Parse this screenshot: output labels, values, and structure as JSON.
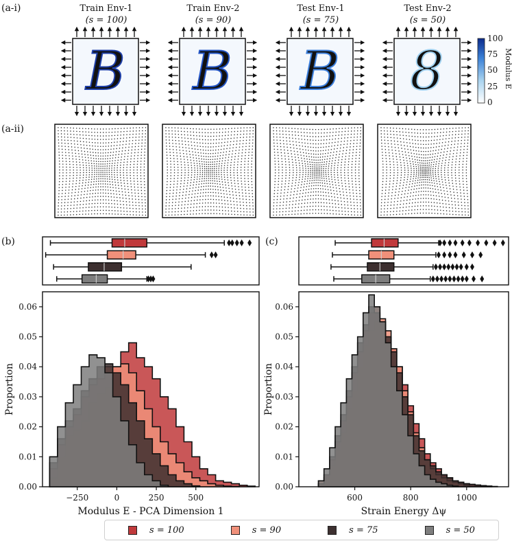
{
  "labels": {
    "ai": "(a-i)",
    "aii": "(a-ii)",
    "b": "(b)",
    "c": "(c)"
  },
  "environments": [
    {
      "name": "Train Env-1",
      "s_label": "(s = 100)",
      "color": "#1e3fa8",
      "glyph": "B"
    },
    {
      "name": "Train Env-2",
      "s_label": "(s = 90)",
      "color": "#2456c6",
      "glyph": "B"
    },
    {
      "name": "Test Env-1",
      "s_label": "(s = 75)",
      "color": "#3c7fdc",
      "glyph": "B"
    },
    {
      "name": "Test Env-2",
      "s_label": "(s = 50)",
      "color": "#9fd0ef",
      "glyph": "8"
    }
  ],
  "colorbar": {
    "label": "Modulus E",
    "ticks": [
      "100",
      "75",
      "50",
      "25",
      "0"
    ]
  },
  "legend": [
    {
      "label": "s = 100",
      "color": "#c0393b"
    },
    {
      "label": "s = 90",
      "color": "#f0907a"
    },
    {
      "label": "s = 75",
      "color": "#3d3030"
    },
    {
      "label": "s = 50",
      "color": "#7e7e7e"
    }
  ],
  "chart_data": [
    {
      "type": "histogram",
      "panel": "(b)",
      "xlabel": "Modulus E - PCA Dimension 1",
      "ylabel": "Proportion",
      "xlim": [
        -470,
        900
      ],
      "ylim": [
        0,
        0.065
      ],
      "xticks": [
        -250,
        0,
        250,
        500
      ],
      "yticks": [
        0.0,
        0.01,
        0.02,
        0.03,
        0.04,
        0.05,
        0.06
      ],
      "ytick_labels": [
        "0.00",
        "0.01",
        "0.02",
        "0.03",
        "0.04",
        "0.05",
        "0.06"
      ],
      "xtick_labels": [
        "−250",
        "0",
        "250",
        "500"
      ],
      "series": [
        {
          "name": "s = 100",
          "color": "#c0393b",
          "x": [
            -400,
            -350,
            -300,
            -250,
            -200,
            -150,
            -100,
            -50,
            0,
            50,
            100,
            150,
            200,
            250,
            300,
            350,
            400,
            450,
            500,
            550,
            600,
            650,
            700,
            750,
            800,
            850
          ],
          "values": [
            0.003,
            0.01,
            0.017,
            0.019,
            0.022,
            0.028,
            0.031,
            0.033,
            0.04,
            0.045,
            0.048,
            0.043,
            0.04,
            0.036,
            0.03,
            0.026,
            0.02,
            0.015,
            0.01,
            0.006,
            0.004,
            0.002,
            0.0015,
            0.001,
            0.0005,
            0.0002
          ]
        },
        {
          "name": "s = 90",
          "color": "#f0907a",
          "x": [
            -400,
            -350,
            -300,
            -250,
            -200,
            -150,
            -100,
            -50,
            0,
            50,
            100,
            150,
            200,
            250,
            300,
            350,
            400,
            450,
            500,
            550,
            600,
            650,
            700,
            750
          ],
          "values": [
            0.006,
            0.014,
            0.02,
            0.024,
            0.03,
            0.034,
            0.036,
            0.04,
            0.04,
            0.041,
            0.038,
            0.032,
            0.026,
            0.02,
            0.015,
            0.011,
            0.008,
            0.005,
            0.003,
            0.002,
            0.001,
            0.0005,
            0.0002,
            0.0001
          ]
        },
        {
          "name": "s = 75",
          "color": "#3d3030",
          "x": [
            -400,
            -350,
            -300,
            -250,
            -200,
            -150,
            -100,
            -50,
            0,
            50,
            100,
            150,
            200,
            250,
            300,
            350,
            400,
            450,
            500
          ],
          "values": [
            0.008,
            0.016,
            0.022,
            0.026,
            0.032,
            0.036,
            0.04,
            0.041,
            0.038,
            0.034,
            0.028,
            0.022,
            0.016,
            0.011,
            0.007,
            0.004,
            0.002,
            0.001,
            0.0003
          ]
        },
        {
          "name": "s = 50",
          "color": "#7e7e7e",
          "x": [
            -400,
            -350,
            -300,
            -250,
            -200,
            -150,
            -100,
            -50,
            0,
            50,
            100,
            150,
            200,
            250,
            300
          ],
          "values": [
            0.01,
            0.02,
            0.028,
            0.034,
            0.04,
            0.044,
            0.043,
            0.038,
            0.03,
            0.022,
            0.014,
            0.008,
            0.004,
            0.002,
            0.0005
          ]
        }
      ],
      "boxplots": [
        {
          "name": "s = 100",
          "whisker_low": -420,
          "q1": -30,
          "median": 50,
          "q3": 190,
          "whisker_high": 680,
          "outliers": [
            710,
            730,
            760,
            790,
            840
          ]
        },
        {
          "name": "s = 90",
          "whisker_low": -450,
          "q1": -60,
          "median": 40,
          "q3": 120,
          "whisker_high": 560,
          "outliers": [
            600,
            625
          ]
        },
        {
          "name": "s = 75",
          "whisker_low": -400,
          "q1": -180,
          "median": -80,
          "q3": 30,
          "whisker_high": 470,
          "outliers": []
        },
        {
          "name": "s = 50",
          "whisker_low": -380,
          "q1": -220,
          "median": -130,
          "q3": -60,
          "whisker_high": 190,
          "outliers": [
            200,
            215,
            230
          ]
        }
      ]
    },
    {
      "type": "histogram",
      "panel": "(c)",
      "xlabel": "Strain Energy Δψ",
      "ylabel": "Proportion",
      "xlim": [
        400,
        1150
      ],
      "ylim": [
        0,
        0.065
      ],
      "xticks": [
        600,
        800,
        1000
      ],
      "xtick_labels": [
        "600",
        "800",
        "1000"
      ],
      "yticks": [
        0.0,
        0.01,
        0.02,
        0.03,
        0.04,
        0.05,
        0.06
      ],
      "ytick_labels": [
        "0.00",
        "0.01",
        "0.02",
        "0.03",
        "0.04",
        "0.05",
        "0.06"
      ],
      "series": [
        {
          "name": "s = 100",
          "color": "#c0393b",
          "x": [
            480,
            500,
            520,
            540,
            560,
            580,
            600,
            620,
            640,
            660,
            680,
            700,
            720,
            740,
            760,
            780,
            800,
            820,
            840,
            860,
            880,
            900,
            920,
            940,
            960,
            980,
            1000,
            1020,
            1040,
            1060,
            1080
          ],
          "values": [
            0.001,
            0.003,
            0.007,
            0.012,
            0.018,
            0.026,
            0.032,
            0.04,
            0.047,
            0.052,
            0.055,
            0.054,
            0.05,
            0.046,
            0.04,
            0.034,
            0.027,
            0.021,
            0.016,
            0.011,
            0.008,
            0.006,
            0.004,
            0.003,
            0.002,
            0.0015,
            0.001,
            0.0008,
            0.0005,
            0.0003,
            0.0002
          ]
        },
        {
          "name": "s = 90",
          "color": "#f0907a",
          "x": [
            480,
            500,
            520,
            540,
            560,
            580,
            600,
            620,
            640,
            660,
            680,
            700,
            720,
            740,
            760,
            780,
            800,
            820,
            840,
            860,
            880,
            900,
            920,
            940,
            960,
            980,
            1000
          ],
          "values": [
            0.002,
            0.004,
            0.009,
            0.015,
            0.022,
            0.03,
            0.038,
            0.045,
            0.052,
            0.058,
            0.06,
            0.056,
            0.052,
            0.046,
            0.04,
            0.032,
            0.025,
            0.018,
            0.013,
            0.009,
            0.006,
            0.004,
            0.003,
            0.002,
            0.0015,
            0.001,
            0.0005
          ]
        },
        {
          "name": "s = 75",
          "color": "#3d3030",
          "x": [
            480,
            500,
            520,
            540,
            560,
            580,
            600,
            620,
            640,
            660,
            680,
            700,
            720,
            740,
            760,
            780,
            800,
            820,
            840,
            860,
            880,
            900,
            920,
            940,
            960,
            980,
            1000,
            1020,
            1040,
            1060,
            1080,
            1100
          ],
          "values": [
            0.001,
            0.004,
            0.01,
            0.017,
            0.024,
            0.032,
            0.04,
            0.048,
            0.054,
            0.06,
            0.058,
            0.055,
            0.05,
            0.045,
            0.038,
            0.03,
            0.024,
            0.017,
            0.012,
            0.009,
            0.007,
            0.005,
            0.004,
            0.003,
            0.002,
            0.0015,
            0.001,
            0.0008,
            0.0006,
            0.0004,
            0.0002,
            0.0001
          ]
        },
        {
          "name": "s = 50",
          "color": "#7e7e7e",
          "x": [
            480,
            500,
            520,
            540,
            560,
            580,
            600,
            620,
            640,
            660,
            680,
            700,
            720,
            740,
            760,
            780,
            800,
            820,
            840,
            860,
            880,
            900,
            920,
            940,
            960
          ],
          "values": [
            0.002,
            0.006,
            0.013,
            0.02,
            0.028,
            0.036,
            0.044,
            0.05,
            0.058,
            0.064,
            0.06,
            0.055,
            0.048,
            0.04,
            0.032,
            0.024,
            0.017,
            0.011,
            0.007,
            0.004,
            0.0025,
            0.0015,
            0.001,
            0.0005,
            0.0002
          ]
        }
      ],
      "boxplots": [
        {
          "name": "s = 100",
          "whisker_low": 530,
          "q1": 660,
          "median": 705,
          "q3": 755,
          "whisker_high": 900,
          "outliers": [
            905,
            920,
            940,
            960,
            985,
            1010,
            1040,
            1070,
            1100,
            1130
          ]
        },
        {
          "name": "s = 90",
          "whisker_low": 520,
          "q1": 650,
          "median": 695,
          "q3": 740,
          "whisker_high": 890,
          "outliers": [
            900,
            920,
            940,
            960,
            990,
            1020,
            1050
          ]
        },
        {
          "name": "s = 75",
          "whisker_low": 515,
          "q1": 645,
          "median": 690,
          "q3": 740,
          "whisker_high": 880,
          "outliers": [
            890,
            905,
            920,
            935,
            950,
            965,
            980,
            1000,
            1020
          ]
        },
        {
          "name": "s = 50",
          "whisker_low": 525,
          "q1": 625,
          "median": 675,
          "q3": 725,
          "whisker_high": 870,
          "outliers": [
            880,
            895,
            910,
            925,
            940,
            955,
            970,
            985,
            1000,
            1025,
            1055
          ]
        }
      ]
    }
  ]
}
